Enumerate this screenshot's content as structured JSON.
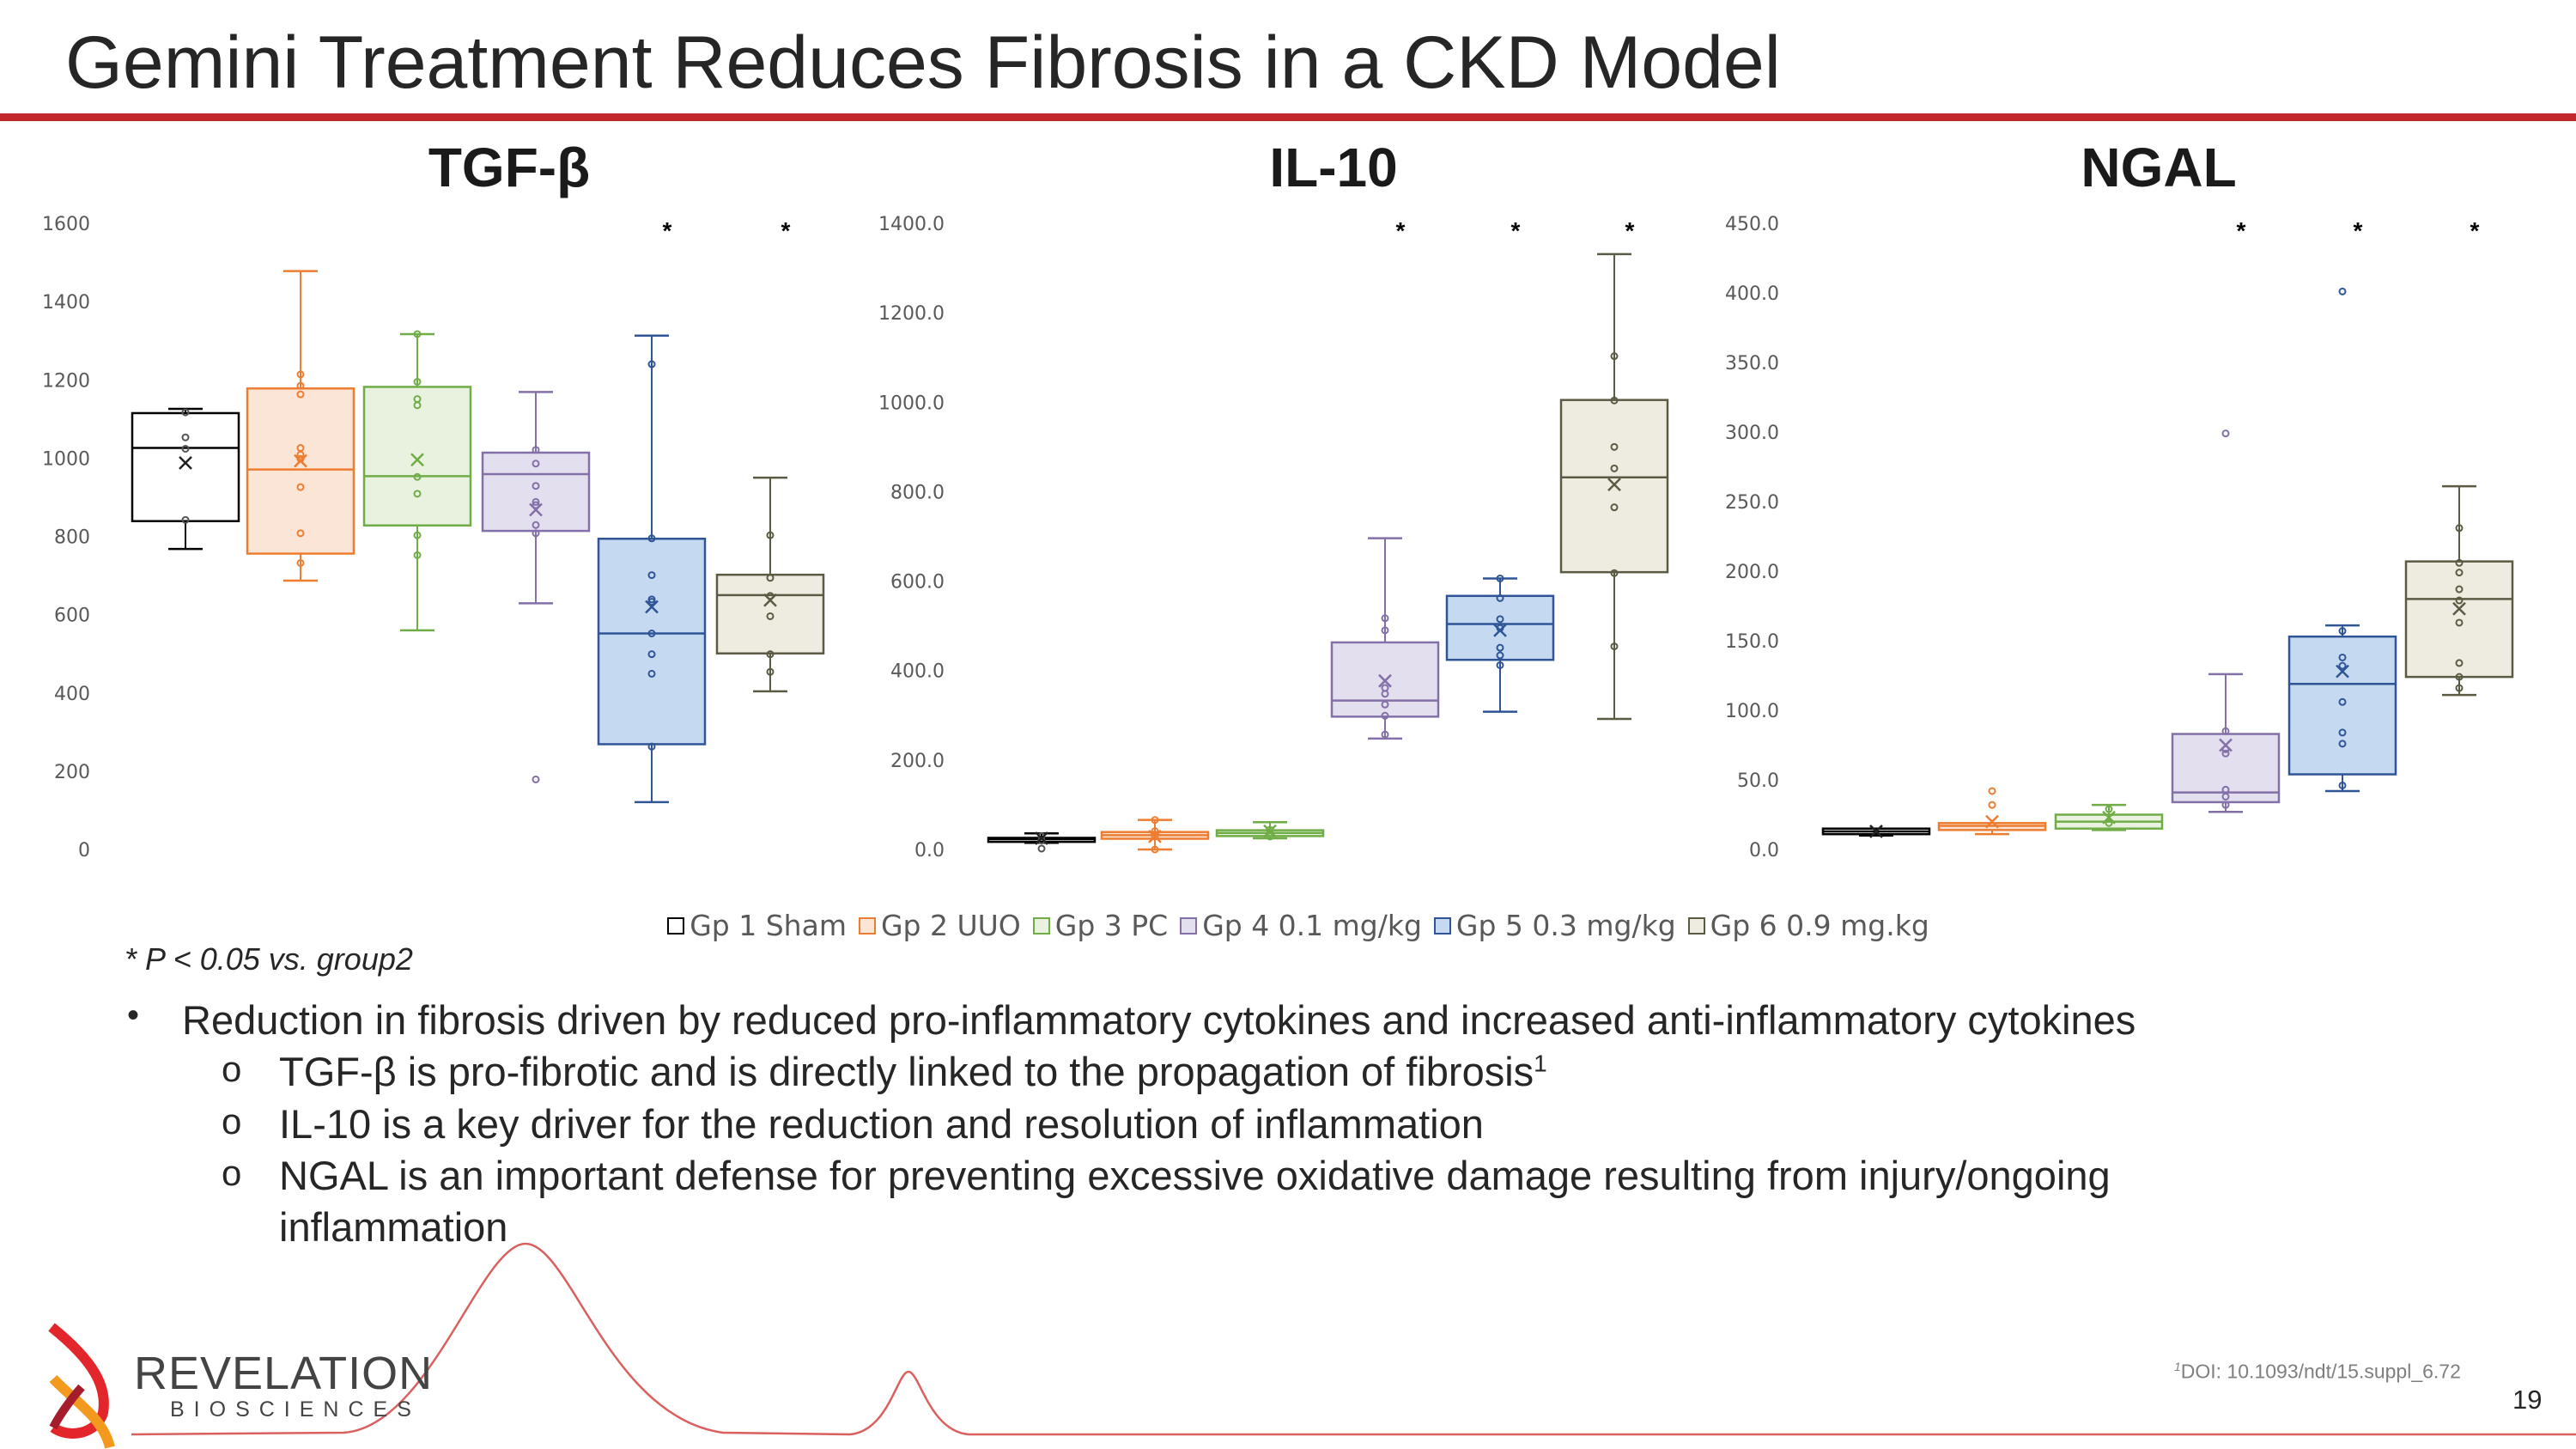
{
  "slide": {
    "title": "Gemini Treatment Reduces Fibrosis in a CKD Model",
    "footnote": "* P < 0.05 vs. group2",
    "bullets": {
      "main": "Reduction in fibrosis driven by reduced pro-inflammatory cytokines and increased anti-inflammatory cytokines",
      "sub": [
        {
          "text": "TGF-β is pro-fibrotic and is directly linked to the propagation of fibrosis",
          "sup": "1"
        },
        {
          "text": "IL-10 is a key driver for the reduction and resolution of inflammation"
        },
        {
          "text": "NGAL is an important defense for preventing excessive oxidative damage resulting from injury/ongoing"
        },
        {
          "text": "inflammation"
        }
      ],
      "bullet_glyph": "•",
      "sub_glyph": "o"
    },
    "reference": {
      "sup": "1",
      "text": "DOI: 10.1093/ndt/15.suppl_6.72"
    },
    "page_number": "19",
    "logo": {
      "name": "REVELATION",
      "sub": "BIOSCIENCES"
    },
    "accent_color": "#c0282d"
  },
  "legend": [
    {
      "label": "Gp 1 Sham",
      "stroke": "#000000",
      "fill": "#ffffff"
    },
    {
      "label": "Gp 2 UUO",
      "stroke": "#ed7d31",
      "fill": "#fbe5d6"
    },
    {
      "label": "Gp 3 PC",
      "stroke": "#70ad47",
      "fill": "#e8f2de"
    },
    {
      "label": "Gp 4 0.1 mg/kg",
      "stroke": "#8470a8",
      "fill": "#e4dfee"
    },
    {
      "label": "Gp 5 0.3 mg/kg",
      "stroke": "#2f5597",
      "fill": "#c5d9f1"
    },
    {
      "label": "Gp 6 0.9 mg.kg",
      "stroke": "#5b5b45",
      "fill": "#eeece1"
    }
  ],
  "chart_data": [
    {
      "type": "boxplot",
      "title": "TGF-β",
      "ylim": [
        0,
        1600
      ],
      "yticks": [
        "0",
        "200",
        "400",
        "600",
        "800",
        "1000",
        "1200",
        "1400",
        "1600"
      ],
      "significance_marker": "*",
      "groups": [
        {
          "name": "Gp 1 Sham",
          "low": 768,
          "q1": 839,
          "median": 1026,
          "q3": 1115,
          "high": 1126,
          "mean": 988,
          "points": [
            1117,
            1053,
            1024,
            842
          ],
          "outliers": [],
          "significant": false
        },
        {
          "name": "Gp 2 UUO",
          "low": 687,
          "q1": 756,
          "median": 971,
          "q3": 1178,
          "high": 1478,
          "mean": 993,
          "points": [
            1214,
            1185,
            1163,
            1026,
            1009,
            998,
            926,
            808,
            732
          ],
          "outliers": [],
          "significant": false
        },
        {
          "name": "Gp 3 PC",
          "low": 560,
          "q1": 828,
          "median": 954,
          "q3": 1182,
          "high": 1317,
          "mean": 996,
          "points": [
            1317,
            1195,
            1151,
            1135,
            952,
            909,
            803,
            752
          ],
          "outliers": [],
          "significant": false
        },
        {
          "name": "Gp 4 0.1 mg/kg",
          "low": 629,
          "q1": 814,
          "median": 959,
          "q3": 1014,
          "high": 1169,
          "mean": 868,
          "points": [
            1021,
            986,
            929,
            888,
            880,
            829,
            808
          ],
          "outliers": [
            179
          ],
          "significant": false
        },
        {
          "name": "Gp 5 0.3 mg/kg",
          "low": 121,
          "q1": 269,
          "median": 552,
          "q3": 794,
          "high": 1313,
          "mean": 620,
          "points": [
            1240,
            795,
            701,
            639,
            633,
            552,
            499,
            449,
            263
          ],
          "outliers": [],
          "significant": true
        },
        {
          "name": "Gp 6 0.9 mg.kg",
          "low": 404,
          "q1": 501,
          "median": 650,
          "q3": 702,
          "high": 950,
          "mean": 637,
          "points": [
            803,
            694,
            648,
            596,
            499,
            454
          ],
          "outliers": [],
          "significant": true
        }
      ]
    },
    {
      "type": "boxplot",
      "title": "IL-10",
      "ylim": [
        0,
        1400
      ],
      "yticks": [
        "0.0",
        "200.0",
        "400.0",
        "600.0",
        "800.0",
        "1000.0",
        "1200.0",
        "1400.0"
      ],
      "significance_marker": "*",
      "groups": [
        {
          "name": "Gp 1 Sham",
          "low": 15,
          "q1": 17,
          "median": 23,
          "q3": 26,
          "high": 36,
          "mean": 25,
          "points": [
            30,
            20,
            2
          ],
          "outliers": [],
          "significant": false
        },
        {
          "name": "Gp 2 UUO",
          "low": 0,
          "q1": 24,
          "median": 32,
          "q3": 39,
          "high": 66,
          "mean": 29,
          "points": [
            66,
            41,
            29,
            0
          ],
          "outliers": [],
          "significant": false
        },
        {
          "name": "Gp 3 PC",
          "low": 25,
          "q1": 30,
          "median": 37,
          "q3": 43,
          "high": 61,
          "mean": 41,
          "points": [
            44,
            29
          ],
          "outliers": [],
          "significant": false
        },
        {
          "name": "Gp 4 0.1 mg/kg",
          "low": 248,
          "q1": 297,
          "median": 333,
          "q3": 463,
          "high": 696,
          "mean": 377,
          "points": [
            517,
            490,
            361,
            348,
            324,
            299,
            257
          ],
          "outliers": [],
          "significant": true
        },
        {
          "name": "Gp 5 0.3 mg/kg",
          "low": 308,
          "q1": 424,
          "median": 504,
          "q3": 567,
          "high": 606,
          "mean": 490,
          "points": [
            606,
            562,
            515,
            495,
            451,
            434,
            412
          ],
          "outliers": [],
          "significant": true
        },
        {
          "name": "Gp 6 0.9 mg.kg",
          "low": 292,
          "q1": 620,
          "median": 832,
          "q3": 1005,
          "high": 1331,
          "mean": 816,
          "points": [
            1103,
            1004,
            900,
            852,
            765,
            618,
            454
          ],
          "outliers": [],
          "significant": true
        }
      ]
    },
    {
      "type": "boxplot",
      "title": "NGAL",
      "ylim": [
        0,
        450
      ],
      "yticks": [
        "0.0",
        "50.0",
        "100.0",
        "150.0",
        "200.0",
        "250.0",
        "300.0",
        "350.0",
        "400.0",
        "450.0"
      ],
      "significance_marker": "*",
      "groups": [
        {
          "name": "Gp 1 Sham",
          "low": 10,
          "q1": 11,
          "median": 13,
          "q3": 15,
          "high": 15,
          "mean": 13,
          "points": [],
          "outliers": [],
          "significant": false
        },
        {
          "name": "Gp 2 UUO",
          "low": 11,
          "q1": 14,
          "median": 17,
          "q3": 19,
          "high": 19,
          "mean": 20,
          "points": [],
          "outliers": [
            42,
            32
          ],
          "significant": false
        },
        {
          "name": "Gp 3 PC",
          "low": 14,
          "q1": 15,
          "median": 20,
          "q3": 25,
          "high": 32,
          "mean": 23,
          "points": [
            29,
            19
          ],
          "outliers": [],
          "significant": false
        },
        {
          "name": "Gp 4 0.1 mg/kg",
          "low": 27,
          "q1": 34,
          "median": 41,
          "q3": 83,
          "high": 126,
          "mean": 75,
          "points": [
            85,
            72,
            69,
            43,
            38,
            32
          ],
          "outliers": [
            299
          ],
          "significant": true
        },
        {
          "name": "Gp 5 0.3 mg/kg",
          "low": 42,
          "q1": 54,
          "median": 119,
          "q3": 153,
          "high": 161,
          "mean": 128,
          "points": [
            157,
            138,
            132,
            106,
            84,
            76,
            46
          ],
          "outliers": [
            401
          ],
          "significant": true
        },
        {
          "name": "Gp 6 0.9 mg.kg",
          "low": 111,
          "q1": 124,
          "median": 180,
          "q3": 207,
          "high": 261,
          "mean": 173,
          "points": [
            231,
            206,
            199,
            187,
            179,
            163,
            134,
            124,
            116
          ],
          "outliers": [],
          "significant": true
        }
      ]
    }
  ]
}
